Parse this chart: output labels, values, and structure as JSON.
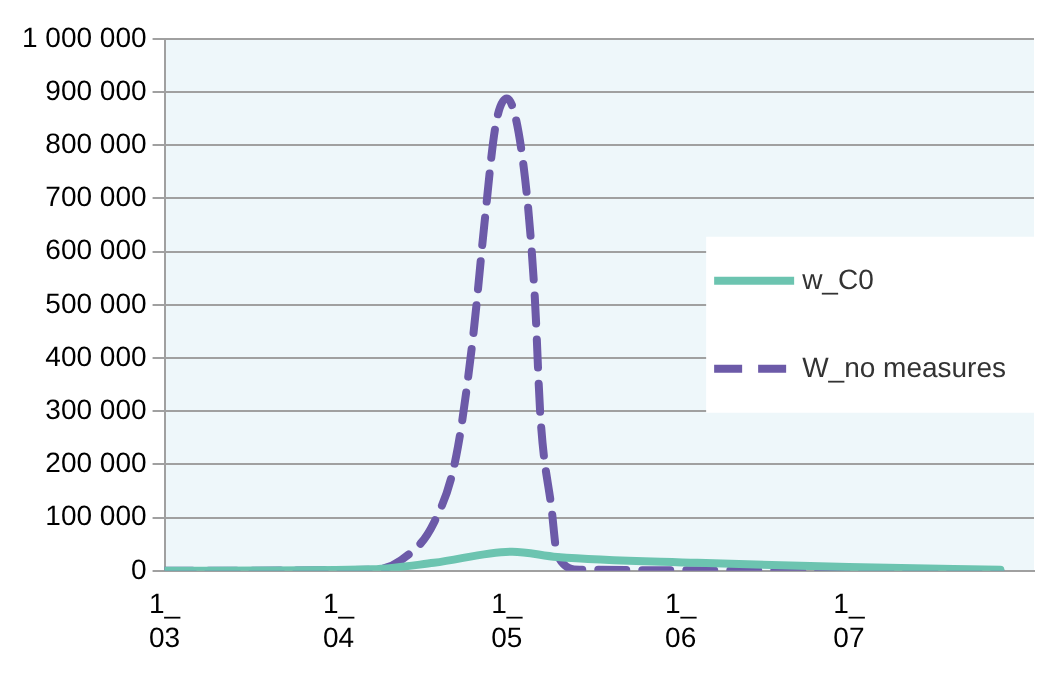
{
  "chart_data": {
    "type": "line",
    "xlim": [
      "--03-01",
      "--08-03"
    ],
    "xticks": [
      {
        "value": "--03-01",
        "label": "1_\n03"
      },
      {
        "value": "--04-01",
        "label": "1_\n04"
      },
      {
        "value": "--05-01",
        "label": "1_\n05"
      },
      {
        "value": "--06-01",
        "label": "1_\n06"
      },
      {
        "value": "--07-01",
        "label": "1_\n07"
      }
    ],
    "ylim": [
      0,
      1000000
    ],
    "yticks": [
      {
        "value": 0,
        "label": "0"
      },
      {
        "value": 100000,
        "label": "100 000"
      },
      {
        "value": 200000,
        "label": "200 000"
      },
      {
        "value": 300000,
        "label": "300 000"
      },
      {
        "value": 400000,
        "label": "400 000"
      },
      {
        "value": 500000,
        "label": "500 000"
      },
      {
        "value": 600000,
        "label": "600 000"
      },
      {
        "value": 700000,
        "label": "700 000"
      },
      {
        "value": 800000,
        "label": "800 000"
      },
      {
        "value": 900000,
        "label": "900 000"
      },
      {
        "value": 1000000,
        "label": "1 000 000"
      }
    ],
    "grid": "y",
    "legend": "right",
    "series": [
      {
        "name": "w_C0",
        "color": "#6cc4b0",
        "line_style": "solid",
        "x": [
          "--03-01",
          "--04-07",
          "--04-18",
          "--05-02",
          "--05-10",
          "--06-04",
          "--07-01",
          "--07-28"
        ],
        "values": [
          0,
          3000,
          15000,
          36000,
          26000,
          15000,
          7000,
          2000
        ]
      },
      {
        "name": "W_no measures",
        "color": "#6c5aa8",
        "line_style": "dashed",
        "x": [
          "--03-01",
          "--04-07",
          "--04-12",
          "--04-18",
          "--04-22",
          "--04-25",
          "--04-27",
          "--04-29",
          "--05-01",
          "--05-04",
          "--05-06",
          "--05-07",
          "--05-09",
          "--05-10",
          "--05-14",
          "--07-28"
        ],
        "values": [
          0,
          2000,
          19000,
          90000,
          216000,
          440000,
          650000,
          836000,
          888000,
          761000,
          515000,
          291000,
          116000,
          30000,
          2000,
          0
        ]
      }
    ]
  }
}
